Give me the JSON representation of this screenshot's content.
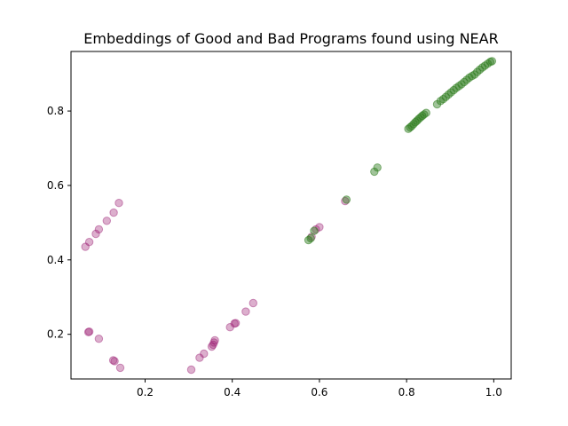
{
  "chart_data": {
    "type": "scatter",
    "title": "Embeddings of Good and Bad Programs found using NEAR",
    "xlabel": "",
    "ylabel": "",
    "xlim": [
      0.03,
      1.04
    ],
    "ylim": [
      0.08,
      0.96
    ],
    "x_ticks": [
      {
        "value": 0.2,
        "label": "0.2"
      },
      {
        "value": 0.4,
        "label": "0.4"
      },
      {
        "value": 0.6,
        "label": "0.6"
      },
      {
        "value": 0.8,
        "label": "0.8"
      },
      {
        "value": 1.0,
        "label": "1.0"
      }
    ],
    "y_ticks": [
      {
        "value": 0.2,
        "label": "0.2"
      },
      {
        "value": 0.4,
        "label": "0.4"
      },
      {
        "value": 0.6,
        "label": "0.6"
      },
      {
        "value": 0.8,
        "label": "0.8"
      }
    ],
    "grid": false,
    "legend": "none",
    "series": [
      {
        "color": "#9a1a70",
        "opacity": 0.35,
        "points": [
          [
            0.063,
            0.435
          ],
          [
            0.072,
            0.448
          ],
          [
            0.087,
            0.47
          ],
          [
            0.094,
            0.482
          ],
          [
            0.112,
            0.505
          ],
          [
            0.128,
            0.527
          ],
          [
            0.14,
            0.553
          ],
          [
            0.072,
            0.207
          ],
          [
            0.07,
            0.206
          ],
          [
            0.094,
            0.188
          ],
          [
            0.13,
            0.128
          ],
          [
            0.127,
            0.13
          ],
          [
            0.143,
            0.11
          ],
          [
            0.306,
            0.105
          ],
          [
            0.325,
            0.137
          ],
          [
            0.335,
            0.148
          ],
          [
            0.353,
            0.167
          ],
          [
            0.356,
            0.172
          ],
          [
            0.358,
            0.178
          ],
          [
            0.36,
            0.184
          ],
          [
            0.395,
            0.219
          ],
          [
            0.405,
            0.229
          ],
          [
            0.408,
            0.23
          ],
          [
            0.431,
            0.261
          ],
          [
            0.448,
            0.284
          ],
          [
            0.582,
            0.462
          ],
          [
            0.592,
            0.482
          ],
          [
            0.6,
            0.488
          ],
          [
            0.659,
            0.558
          ]
        ]
      },
      {
        "color": "#2e7d1e",
        "opacity": 0.45,
        "points": [
          [
            0.575,
            0.453
          ],
          [
            0.58,
            0.458
          ],
          [
            0.588,
            0.478
          ],
          [
            0.662,
            0.562
          ],
          [
            0.726,
            0.637
          ],
          [
            0.733,
            0.648
          ],
          [
            0.804,
            0.752
          ],
          [
            0.808,
            0.756
          ],
          [
            0.812,
            0.76
          ],
          [
            0.816,
            0.765
          ],
          [
            0.82,
            0.77
          ],
          [
            0.824,
            0.774
          ],
          [
            0.828,
            0.779
          ],
          [
            0.832,
            0.783
          ],
          [
            0.836,
            0.787
          ],
          [
            0.84,
            0.791
          ],
          [
            0.845,
            0.795
          ],
          [
            0.87,
            0.818
          ],
          [
            0.878,
            0.827
          ],
          [
            0.884,
            0.832
          ],
          [
            0.89,
            0.838
          ],
          [
            0.896,
            0.844
          ],
          [
            0.902,
            0.85
          ],
          [
            0.908,
            0.856
          ],
          [
            0.914,
            0.862
          ],
          [
            0.92,
            0.867
          ],
          [
            0.926,
            0.872
          ],
          [
            0.932,
            0.878
          ],
          [
            0.938,
            0.884
          ],
          [
            0.944,
            0.89
          ],
          [
            0.95,
            0.894
          ],
          [
            0.956,
            0.898
          ],
          [
            0.962,
            0.905
          ],
          [
            0.968,
            0.911
          ],
          [
            0.974,
            0.917
          ],
          [
            0.98,
            0.922
          ],
          [
            0.986,
            0.927
          ],
          [
            0.992,
            0.932
          ],
          [
            0.996,
            0.934
          ]
        ]
      }
    ]
  }
}
